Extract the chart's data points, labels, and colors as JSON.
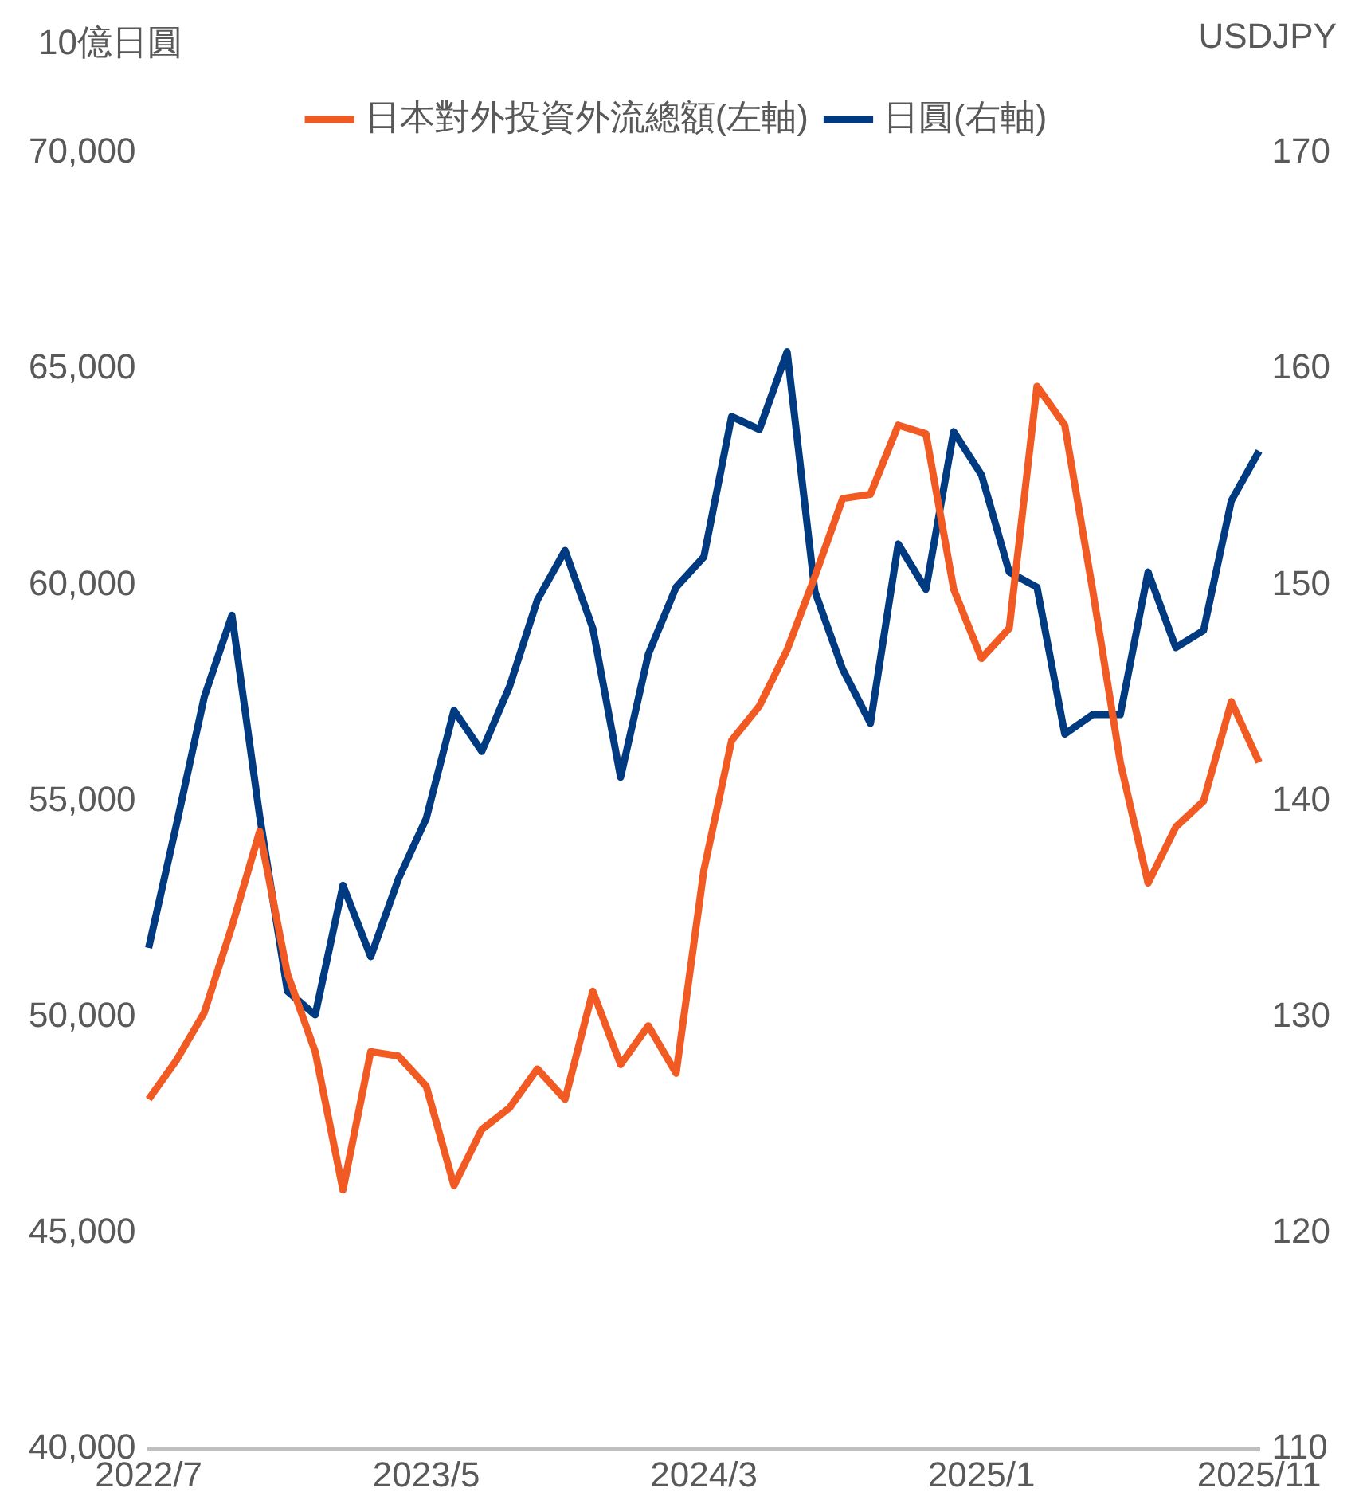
{
  "chart_data": {
    "type": "line",
    "ylabel": "10億日圓",
    "y2label": "USDJPY",
    "categories": [
      "2022/7",
      null,
      null,
      null,
      null,
      null,
      null,
      null,
      null,
      null,
      "2023/5",
      null,
      null,
      null,
      null,
      null,
      null,
      null,
      null,
      null,
      "2024/3",
      null,
      null,
      null,
      null,
      null,
      null,
      null,
      null,
      null,
      "2025/1",
      null,
      null,
      null,
      null,
      null,
      null,
      null,
      null,
      null,
      "2025/11"
    ],
    "series": [
      {
        "name": "日本對外投資外流總額(左軸)",
        "color": "#f15a22",
        "values": [
          48100,
          49000,
          50100,
          52100,
          54300,
          51000,
          49200,
          46000,
          49200,
          49100,
          48400,
          46100,
          47400,
          47900,
          48800,
          48100,
          50600,
          48900,
          49800,
          48700,
          53400,
          56400,
          57200,
          58500,
          60200,
          62000,
          62100,
          63700,
          63500,
          59900,
          58300,
          59000,
          64600,
          63700,
          59900,
          55900,
          53100,
          54400,
          55000,
          57300,
          55900
        ]
      },
      {
        "name": "日圓(右軸)",
        "color": "#003a80",
        "axis": "y2",
        "values": [
          133.2,
          138.9,
          144.8,
          148.6,
          139.3,
          131.2,
          130.1,
          136.1,
          132.8,
          136.4,
          139.2,
          144.2,
          142.3,
          145.3,
          149.3,
          151.6,
          148.0,
          141.1,
          146.8,
          149.9,
          151.3,
          157.8,
          157.2,
          160.8,
          149.7,
          146.1,
          143.6,
          151.9,
          149.8,
          157.1,
          155.1,
          150.6,
          149.9,
          143.1,
          144.0,
          144.0,
          150.6,
          147.1,
          147.9,
          153.9,
          156.2
        ]
      }
    ],
    "ylim": [
      40000,
      70000
    ],
    "yticks": [
      {
        "value": 40000,
        "label": "40,000"
      },
      {
        "value": 45000,
        "label": "45,000"
      },
      {
        "value": 50000,
        "label": "50,000"
      },
      {
        "value": 55000,
        "label": "55,000"
      },
      {
        "value": 60000,
        "label": "60,000"
      },
      {
        "value": 65000,
        "label": "65,000"
      },
      {
        "value": 70000,
        "label": "70,000"
      }
    ],
    "y2lim": [
      110,
      170
    ],
    "y2ticks": [
      110,
      120,
      130,
      140,
      150,
      160,
      170
    ],
    "legend": "top",
    "grid": false,
    "marker": "none",
    "line_style": "solid"
  }
}
